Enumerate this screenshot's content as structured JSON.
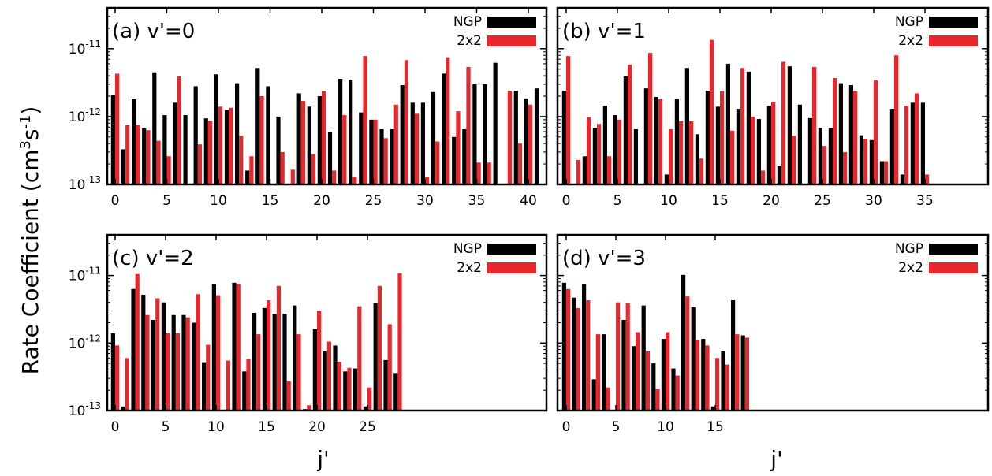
{
  "figure": {
    "ylabel": "Rate Coefficient (cm",
    "ylabel_sup1": "3",
    "ylabel_mid": "s",
    "ylabel_sup2": "-1",
    "ylabel_end": ")",
    "xlabel": "j'",
    "ytick_base": "10",
    "ytick_exps": [
      "-11",
      "-12",
      "-13"
    ],
    "colors": {
      "NGP": "#000000",
      "2x2": "#e8262b"
    }
  },
  "chart_data": [
    {
      "type": "bar",
      "title": "(a) v'=0",
      "xlabel": "j'",
      "ylabel": "Rate Coefficient (cm^3 s^-1)",
      "yscale": "log",
      "ylim": [
        1e-13,
        4e-11
      ],
      "xticks": [
        0,
        5,
        10,
        15,
        20,
        25,
        30,
        35,
        40
      ],
      "x": [
        0,
        1,
        2,
        3,
        4,
        5,
        6,
        7,
        8,
        9,
        10,
        11,
        12,
        13,
        14,
        15,
        16,
        17,
        18,
        19,
        20,
        21,
        22,
        23,
        24,
        25,
        26,
        27,
        28,
        29,
        30,
        31,
        32,
        33,
        34,
        35,
        36,
        37,
        38,
        39,
        40,
        41
      ],
      "series": [
        {
          "name": "NGP",
          "values": [
            2.1e-12,
            3.3e-13,
            1.8e-12,
            6.7e-13,
            4.5e-12,
            1.05e-12,
            1.6e-12,
            1.05e-12,
            2.8e-12,
            9.4e-13,
            4.2e-12,
            1.25e-12,
            3.1e-12,
            1.6e-13,
            5.2e-12,
            2.8e-12,
            1e-12,
            null,
            2.2e-12,
            1.4e-12,
            2e-12,
            6e-13,
            3.6e-12,
            3.5e-12,
            1.15e-12,
            9e-13,
            6.5e-13,
            6.5e-13,
            2.9e-12,
            1.6e-12,
            1.6e-12,
            2.3e-12,
            4.3e-12,
            5e-13,
            6.5e-13,
            3e-12,
            3e-12,
            6.2e-12,
            null,
            2.4e-12,
            1.85e-12,
            2.6e-12
          ]
        },
        {
          "name": "2x2",
          "values": [
            4.3e-12,
            7.5e-13,
            7.5e-13,
            6.3e-13,
            4.4e-13,
            2.6e-13,
            3.9e-12,
            null,
            3.9e-13,
            8.5e-13,
            1.4e-12,
            1.35e-12,
            5.2e-13,
            2.6e-13,
            2e-12,
            null,
            3e-13,
            1.65e-13,
            1.7e-12,
            2.8e-13,
            2.4e-12,
            1.6e-13,
            1.05e-12,
            1.3e-13,
            7.8e-12,
            9e-13,
            4.8e-13,
            1.5e-12,
            6.8e-12,
            1.1e-12,
            1.3e-13,
            4.3e-13,
            7.5e-12,
            1.2e-12,
            5.4e-12,
            2.1e-13,
            2.1e-13,
            null,
            2.4e-12,
            4e-13,
            1.5e-12,
            null
          ]
        }
      ],
      "legend": "top-right"
    },
    {
      "type": "bar",
      "title": "(b) v'=1",
      "xlabel": "j'",
      "ylabel": "Rate Coefficient (cm^3 s^-1)",
      "yscale": "log",
      "ylim": [
        1e-13,
        4e-11
      ],
      "xticks": [
        0,
        5,
        10,
        15,
        20,
        25,
        30,
        35
      ],
      "x": [
        0,
        1,
        2,
        3,
        4,
        5,
        6,
        7,
        8,
        9,
        10,
        11,
        12,
        13,
        14,
        15,
        16,
        17,
        18,
        19,
        20,
        21,
        22,
        23,
        24,
        25,
        26,
        27,
        28,
        29,
        30,
        31,
        32,
        33,
        34,
        35
      ],
      "series": [
        {
          "name": "NGP",
          "values": [
            2.4e-12,
            null,
            2.6e-13,
            6.8e-13,
            1.45e-12,
            1.05e-12,
            3.9e-12,
            6.5e-13,
            2.6e-12,
            1.95e-12,
            1.4e-13,
            1.8e-12,
            5.2e-12,
            5.5e-13,
            2.4e-12,
            1.4e-12,
            6e-12,
            1.3e-12,
            4.6e-12,
            9.2e-13,
            1.45e-12,
            1.85e-13,
            5.5e-12,
            1.5e-12,
            9.5e-13,
            6.8e-13,
            6.8e-13,
            3.1e-12,
            2.9e-12,
            5.3e-13,
            4.5e-13,
            2.2e-13,
            1.3e-12,
            1.4e-13,
            1.6e-12,
            1.6e-12
          ]
        },
        {
          "name": "2x2",
          "values": [
            7.8e-12,
            2.3e-13,
            9.8e-13,
            7.8e-13,
            2.6e-13,
            9e-13,
            5.8e-12,
            null,
            8.7e-12,
            1.8e-12,
            6.5e-13,
            8.5e-13,
            8.5e-13,
            2.4e-13,
            1.35e-11,
            2.4e-12,
            6.2e-13,
            5.2e-12,
            1e-12,
            1.6e-13,
            1.65e-12,
            6.4e-12,
            5.2e-13,
            null,
            5.4e-12,
            3.7e-13,
            3.7e-12,
            3e-13,
            2.4e-12,
            4.7e-13,
            3.4e-12,
            2.2e-13,
            8e-12,
            1.45e-12,
            2.2e-12,
            1.4e-13
          ]
        }
      ],
      "legend": "top-right"
    },
    {
      "type": "bar",
      "title": "(c) v'=2",
      "xlabel": "j'",
      "ylabel": "Rate Coefficient (cm^3 s^-1)",
      "yscale": "log",
      "ylim": [
        1e-13,
        4e-11
      ],
      "xticks": [
        0,
        5,
        10,
        15,
        20,
        25
      ],
      "x": [
        0,
        1,
        2,
        3,
        4,
        5,
        6,
        7,
        8,
        9,
        10,
        11,
        12,
        13,
        14,
        15,
        16,
        17,
        18,
        19,
        20,
        21,
        22,
        23,
        24,
        25,
        26,
        27,
        28
      ],
      "series": [
        {
          "name": "NGP",
          "values": [
            1.4e-12,
            1.15e-13,
            6.3e-12,
            5.2e-12,
            2.2e-12,
            4e-12,
            2.6e-12,
            2.6e-12,
            2e-12,
            5.2e-13,
            7.5e-12,
            null,
            7.8e-12,
            3.8e-13,
            2.8e-12,
            3.3e-12,
            2.7e-12,
            2.7e-12,
            3.6e-12,
            1.05e-13,
            1.6e-12,
            7.5e-13,
            9.2e-13,
            3.8e-13,
            4.2e-13,
            1.15e-13,
            3.9e-12,
            5.6e-13,
            3.6e-13
          ]
        },
        {
          "name": "2x2",
          "values": [
            9.2e-13,
            6e-13,
            1.05e-11,
            2.6e-12,
            4.6e-12,
            1.4e-12,
            1.4e-12,
            2.4e-12,
            5.3e-12,
            9.4e-13,
            5.1e-12,
            5.5e-13,
            7.5e-12,
            5.8e-13,
            1.35e-12,
            4.3e-12,
            7e-12,
            2.7e-13,
            1.35e-12,
            1.2e-13,
            3e-12,
            1.05e-12,
            5.3e-13,
            4.3e-13,
            3.5e-12,
            2.2e-13,
            7e-12,
            1.9e-12,
            1.08e-11
          ]
        }
      ],
      "legend": "top-right"
    },
    {
      "type": "bar",
      "title": "(d) v'=3",
      "xlabel": "j'",
      "ylabel": "Rate Coefficient (cm^3 s^-1)",
      "yscale": "log",
      "ylim": [
        1e-13,
        4e-11
      ],
      "xticks": [
        0,
        5,
        10,
        15
      ],
      "x": [
        0,
        1,
        2,
        3,
        4,
        5,
        6,
        7,
        8,
        9,
        10,
        11,
        12,
        13,
        14,
        15,
        16,
        17,
        18
      ],
      "series": [
        {
          "name": "NGP",
          "values": [
            7.8e-12,
            4.7e-12,
            7.5e-12,
            2.9e-13,
            1.35e-12,
            null,
            2.2e-12,
            9e-13,
            3.6e-12,
            5e-13,
            1.15e-12,
            4.2e-13,
            1.02e-11,
            3.4e-12,
            1.15e-12,
            1.15e-13,
            7.5e-13,
            4.3e-12,
            1.3e-12
          ]
        },
        {
          "name": "2x2",
          "values": [
            6.3e-12,
            3.3e-12,
            4.3e-12,
            1.35e-12,
            2.2e-13,
            4e-12,
            3.9e-12,
            1.45e-12,
            7.5e-13,
            2.1e-13,
            1.45e-12,
            3.3e-13,
            4.9e-12,
            1.1e-12,
            9.2e-13,
            6e-13,
            4.8e-13,
            1.35e-12,
            1.2e-12
          ]
        }
      ],
      "legend": "top-right"
    }
  ]
}
